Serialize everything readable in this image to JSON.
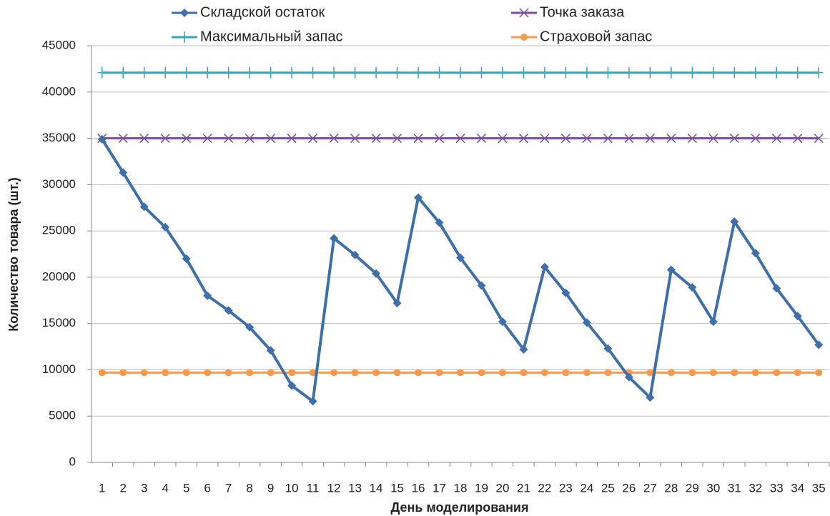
{
  "chart_data": {
    "type": "line",
    "y_label": "Количество товара (шт.)",
    "x_label": "День моделирования",
    "categories": [
      "1",
      "2",
      "3",
      "4",
      "5",
      "6",
      "7",
      "8",
      "9",
      "10",
      "11",
      "12",
      "13",
      "14",
      "15",
      "16",
      "17",
      "18",
      "19",
      "20",
      "21",
      "22",
      "23",
      "24",
      "25",
      "26",
      "27",
      "28",
      "29",
      "30",
      "31",
      "32",
      "33",
      "34",
      "35"
    ],
    "series": [
      {
        "name": "Складской остаток",
        "color": "#3d6fab",
        "marker": "diamond",
        "values": [
          34900,
          31300,
          27600,
          25400,
          22000,
          18000,
          16400,
          14600,
          12100,
          8300,
          6600,
          24200,
          22400,
          20400,
          17200,
          28600,
          25900,
          22100,
          19100,
          15200,
          12200,
          21100,
          18300,
          15100,
          12300,
          9200,
          7000,
          20800,
          18900,
          15200,
          26000,
          22600,
          18800,
          15800,
          12700
        ]
      },
      {
        "name": "Точка заказа",
        "color": "#7a4f9e",
        "marker": "x",
        "values": [
          35000,
          35000,
          35000,
          35000,
          35000,
          35000,
          35000,
          35000,
          35000,
          35000,
          35000,
          35000,
          35000,
          35000,
          35000,
          35000,
          35000,
          35000,
          35000,
          35000,
          35000,
          35000,
          35000,
          35000,
          35000,
          35000,
          35000,
          35000,
          35000,
          35000,
          35000,
          35000,
          35000,
          35000,
          35000
        ]
      },
      {
        "name": "Максимальный запас",
        "color": "#35a3b9",
        "marker": "plus",
        "values": [
          42100,
          42100,
          42100,
          42100,
          42100,
          42100,
          42100,
          42100,
          42100,
          42100,
          42100,
          42100,
          42100,
          42100,
          42100,
          42100,
          42100,
          42100,
          42100,
          42100,
          42100,
          42100,
          42100,
          42100,
          42100,
          42100,
          42100,
          42100,
          42100,
          42100,
          42100,
          42100,
          42100,
          42100,
          42100
        ]
      },
      {
        "name": "Страховой запас",
        "color": "#f59a4e",
        "marker": "circle",
        "values": [
          9700,
          9700,
          9700,
          9700,
          9700,
          9700,
          9700,
          9700,
          9700,
          9700,
          9700,
          9700,
          9700,
          9700,
          9700,
          9700,
          9700,
          9700,
          9700,
          9700,
          9700,
          9700,
          9700,
          9700,
          9700,
          9700,
          9700,
          9700,
          9700,
          9700,
          9700,
          9700,
          9700,
          9700,
          9700
        ]
      }
    ],
    "ylim": [
      0,
      45000
    ],
    "yticks": [
      0,
      5000,
      10000,
      15000,
      20000,
      25000,
      30000,
      35000,
      40000,
      45000
    ],
    "grid": true,
    "legend": "top"
  }
}
